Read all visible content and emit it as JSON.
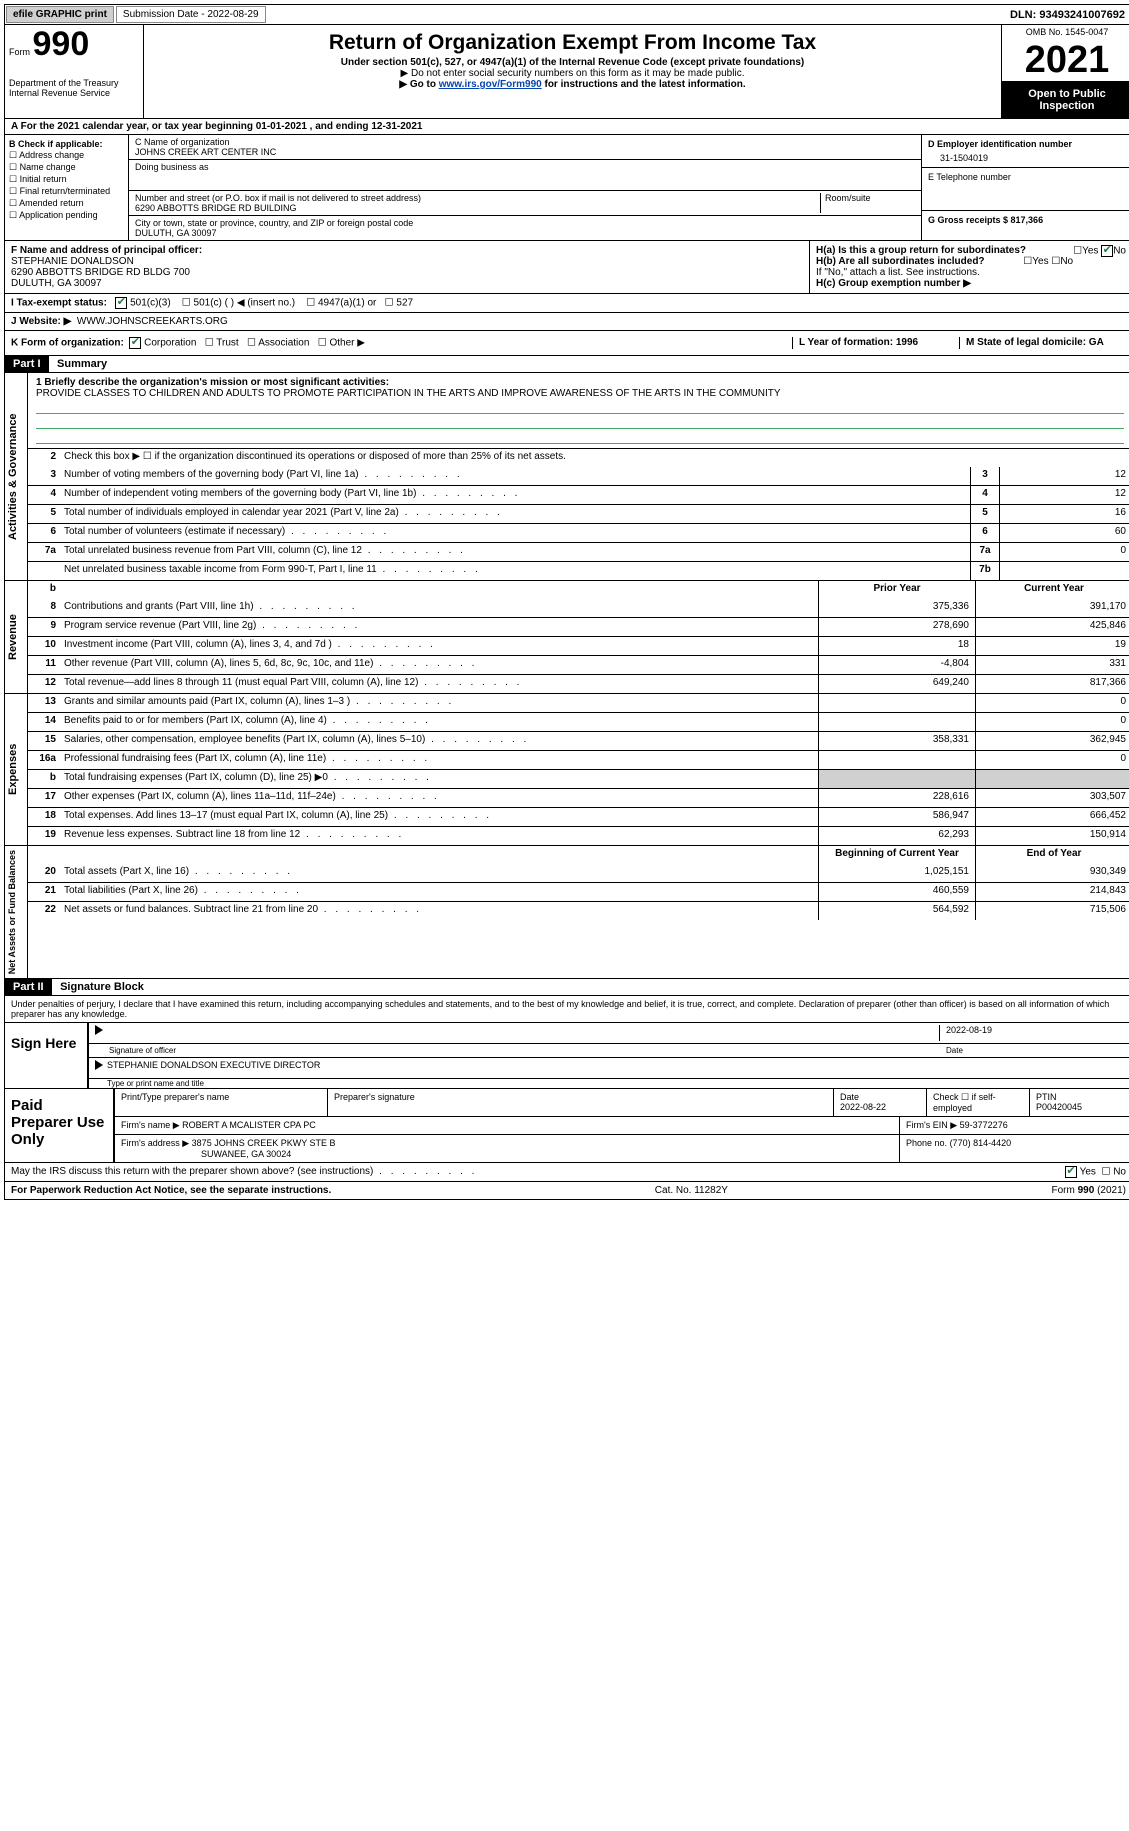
{
  "topbar": {
    "efile": "efile GRAPHIC print",
    "submission": "Submission Date - 2022-08-29",
    "dln": "DLN: 93493241007692"
  },
  "header": {
    "form_word": "Form",
    "form_no": "990",
    "title": "Return of Organization Exempt From Income Tax",
    "subtitle": "Under section 501(c), 527, or 4947(a)(1) of the Internal Revenue Code (except private foundations)",
    "note1": "▶ Do not enter social security numbers on this form as it may be made public.",
    "note2_prefix": "▶ Go to ",
    "note2_link": "www.irs.gov/Form990",
    "note2_suffix": " for instructions and the latest information.",
    "dept": "Department of the Treasury\nInternal Revenue Service",
    "omb": "OMB No. 1545-0047",
    "year": "2021",
    "open": "Open to Public Inspection"
  },
  "rowA": "A For the 2021 calendar year, or tax year beginning 01-01-2021    , and ending 12-31-2021",
  "colB": {
    "title": "B Check if applicable:",
    "items": [
      "Address change",
      "Name change",
      "Initial return",
      "Final return/terminated",
      "Amended return",
      "Application pending"
    ]
  },
  "colC": {
    "name_label": "C Name of organization",
    "name": "JOHNS CREEK ART CENTER INC",
    "dba_label": "Doing business as",
    "addr_label": "Number and street (or P.O. box if mail is not delivered to street address)",
    "addr": "6290 ABBOTTS BRIDGE RD BUILDING",
    "room_label": "Room/suite",
    "city_label": "City or town, state or province, country, and ZIP or foreign postal code",
    "city": "DULUTH, GA  30097"
  },
  "colDE": {
    "d_label": "D Employer identification number",
    "d_val": "31-1504019",
    "e_label": "E Telephone number",
    "g_label": "G Gross receipts $ 817,366"
  },
  "rowF": {
    "label": "F  Name and address of principal officer:",
    "name": "STEPHANIE DONALDSON",
    "addr1": "6290 ABBOTTS BRIDGE RD BLDG 700",
    "addr2": "DULUTH, GA  30097"
  },
  "rowH": {
    "ha": "H(a)  Is this a group return for subordinates?",
    "hb": "H(b)  Are all subordinates included?",
    "hb_note": "If \"No,\" attach a list. See instructions.",
    "hc": "H(c)  Group exemption number ▶",
    "yes": "Yes",
    "no": "No"
  },
  "rowI": {
    "label": "I   Tax-exempt status:",
    "opts": [
      "501(c)(3)",
      "501(c) (  ) ◀ (insert no.)",
      "4947(a)(1) or",
      "527"
    ]
  },
  "rowJ": {
    "label": "J   Website: ▶",
    "val": "WWW.JOHNSCREEKARTS.ORG"
  },
  "rowK": {
    "label": "K Form of organization:",
    "opts": [
      "Corporation",
      "Trust",
      "Association",
      "Other ▶"
    ],
    "l": "L Year of formation: 1996",
    "m": "M State of legal domicile: GA"
  },
  "part1": {
    "header": "Part I",
    "title": "Summary",
    "mission_label": "1  Briefly describe the organization's mission or most significant activities:",
    "mission": "PROVIDE CLASSES TO CHILDREN AND ADULTS TO PROMOTE PARTICIPATION IN THE ARTS AND IMPROVE AWARENESS OF THE ARTS IN THE COMMUNITY",
    "line2": "Check this box ▶ ☐  if the organization discontinued its operations or disposed of more than 25% of its net assets.",
    "gov_label": "Activities & Governance",
    "rev_label": "Revenue",
    "exp_label": "Expenses",
    "net_label": "Net Assets or Fund Balances",
    "lines_gov": [
      {
        "n": "3",
        "d": "Number of voting members of the governing body (Part VI, line 1a)",
        "box": "3",
        "v": "12"
      },
      {
        "n": "4",
        "d": "Number of independent voting members of the governing body (Part VI, line 1b)",
        "box": "4",
        "v": "12"
      },
      {
        "n": "5",
        "d": "Total number of individuals employed in calendar year 2021 (Part V, line 2a)",
        "box": "5",
        "v": "16"
      },
      {
        "n": "6",
        "d": "Total number of volunteers (estimate if necessary)",
        "box": "6",
        "v": "60"
      },
      {
        "n": "7a",
        "d": "Total unrelated business revenue from Part VIII, column (C), line 12",
        "box": "7a",
        "v": "0"
      },
      {
        "n": "",
        "d": "Net unrelated business taxable income from Form 990-T, Part I, line 11",
        "box": "7b",
        "v": ""
      }
    ],
    "prior_hdr": "Prior Year",
    "curr_hdr": "Current Year",
    "lines_rev": [
      {
        "n": "8",
        "d": "Contributions and grants (Part VIII, line 1h)",
        "p": "375,336",
        "c": "391,170"
      },
      {
        "n": "9",
        "d": "Program service revenue (Part VIII, line 2g)",
        "p": "278,690",
        "c": "425,846"
      },
      {
        "n": "10",
        "d": "Investment income (Part VIII, column (A), lines 3, 4, and 7d )",
        "p": "18",
        "c": "19"
      },
      {
        "n": "11",
        "d": "Other revenue (Part VIII, column (A), lines 5, 6d, 8c, 9c, 10c, and 11e)",
        "p": "-4,804",
        "c": "331"
      },
      {
        "n": "12",
        "d": "Total revenue—add lines 8 through 11 (must equal Part VIII, column (A), line 12)",
        "p": "649,240",
        "c": "817,366"
      }
    ],
    "lines_exp": [
      {
        "n": "13",
        "d": "Grants and similar amounts paid (Part IX, column (A), lines 1–3 )",
        "p": "",
        "c": "0"
      },
      {
        "n": "14",
        "d": "Benefits paid to or for members (Part IX, column (A), line 4)",
        "p": "",
        "c": "0"
      },
      {
        "n": "15",
        "d": "Salaries, other compensation, employee benefits (Part IX, column (A), lines 5–10)",
        "p": "358,331",
        "c": "362,945"
      },
      {
        "n": "16a",
        "d": "Professional fundraising fees (Part IX, column (A), line 11e)",
        "p": "",
        "c": "0"
      },
      {
        "n": "b",
        "d": "Total fundraising expenses (Part IX, column (D), line 25) ▶0",
        "p": "SHADE",
        "c": "SHADE"
      },
      {
        "n": "17",
        "d": "Other expenses (Part IX, column (A), lines 11a–11d, 11f–24e)",
        "p": "228,616",
        "c": "303,507"
      },
      {
        "n": "18",
        "d": "Total expenses. Add lines 13–17 (must equal Part IX, column (A), line 25)",
        "p": "586,947",
        "c": "666,452"
      },
      {
        "n": "19",
        "d": "Revenue less expenses. Subtract line 18 from line 12",
        "p": "62,293",
        "c": "150,914"
      }
    ],
    "beg_hdr": "Beginning of Current Year",
    "end_hdr": "End of Year",
    "lines_net": [
      {
        "n": "20",
        "d": "Total assets (Part X, line 16)",
        "p": "1,025,151",
        "c": "930,349"
      },
      {
        "n": "21",
        "d": "Total liabilities (Part X, line 26)",
        "p": "460,559",
        "c": "214,843"
      },
      {
        "n": "22",
        "d": "Net assets or fund balances. Subtract line 21 from line 20",
        "p": "564,592",
        "c": "715,506"
      }
    ]
  },
  "part2": {
    "header": "Part II",
    "title": "Signature Block",
    "intro": "Under penalties of perjury, I declare that I have examined this return, including accompanying schedules and statements, and to the best of my knowledge and belief, it is true, correct, and complete. Declaration of preparer (other than officer) is based on all information of which preparer has any knowledge.",
    "sign_here": "Sign Here",
    "sig_of_officer": "Signature of officer",
    "sig_date": "2022-08-19",
    "date_label": "Date",
    "officer_name": "STEPHANIE DONALDSON  EXECUTIVE DIRECTOR",
    "officer_label": "Type or print name and title",
    "paid": "Paid Preparer Use Only",
    "pp_name_label": "Print/Type preparer's name",
    "pp_sig_label": "Preparer's signature",
    "pp_date_label": "Date",
    "pp_date": "2022-08-22",
    "pp_check": "Check ☐ if self-employed",
    "ptin_label": "PTIN",
    "ptin": "P00420045",
    "firm_name_label": "Firm's name     ▶",
    "firm_name": "ROBERT A MCALISTER CPA PC",
    "firm_ein_label": "Firm's EIN ▶",
    "firm_ein": "59-3772276",
    "firm_addr_label": "Firm's address ▶",
    "firm_addr1": "3875 JOHNS CREEK PKWY STE B",
    "firm_addr2": "SUWANEE, GA  30024",
    "phone_label": "Phone no.",
    "phone": "(770) 814-4420",
    "discuss": "May the IRS discuss this return with the preparer shown above? (see instructions)"
  },
  "footer": {
    "pra": "For Paperwork Reduction Act Notice, see the separate instructions.",
    "cat": "Cat. No. 11282Y",
    "form": "Form 990 (2021)"
  }
}
